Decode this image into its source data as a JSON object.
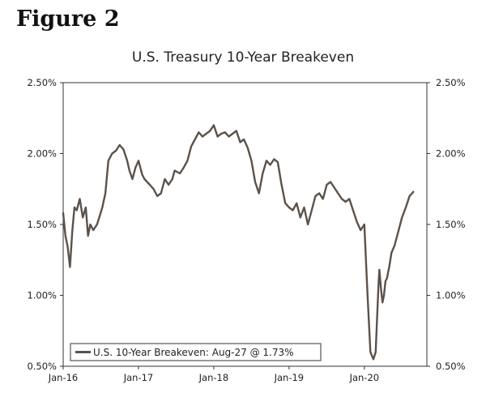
{
  "figure_label": "Figure 2",
  "chart_data": {
    "type": "line",
    "title": "U.S. Treasury 10-Year Breakeven",
    "xlabel": "",
    "ylabel": "",
    "grid": false,
    "legend_position": "bottom-left",
    "ylim": [
      0.5,
      2.5
    ],
    "xlim": [
      2016.0,
      2020.83
    ],
    "y_ticks": [
      2.5,
      2.0,
      1.5,
      1.0,
      0.5
    ],
    "y_tick_labels": [
      "2.50%",
      "2.00%",
      "1.50%",
      "1.00%",
      "0.50%"
    ],
    "x_ticks": [
      2016,
      2017,
      2018,
      2019,
      2020
    ],
    "x_tick_labels": [
      "Jan-16",
      "Jan-17",
      "Jan-18",
      "Jan-19",
      "Jan-20"
    ],
    "series": [
      {
        "name": "U.S. 10-Year Breakeven: Aug-27 @ 1.73%",
        "color": "#5c5249",
        "x": [
          2016.0,
          2016.03,
          2016.06,
          2016.09,
          2016.12,
          2016.15,
          2016.18,
          2016.22,
          2016.26,
          2016.3,
          2016.33,
          2016.36,
          2016.4,
          2016.45,
          2016.48,
          2016.52,
          2016.56,
          2016.6,
          2016.65,
          2016.7,
          2016.75,
          2016.8,
          2016.85,
          2016.88,
          2016.92,
          2016.96,
          2017.0,
          2017.05,
          2017.08,
          2017.15,
          2017.2,
          2017.25,
          2017.3,
          2017.35,
          2017.4,
          2017.45,
          2017.48,
          2017.55,
          2017.6,
          2017.65,
          2017.7,
          2017.75,
          2017.8,
          2017.85,
          2017.9,
          2017.95,
          2018.0,
          2018.05,
          2018.1,
          2018.15,
          2018.2,
          2018.25,
          2018.3,
          2018.35,
          2018.4,
          2018.45,
          2018.5,
          2018.55,
          2018.6,
          2018.65,
          2018.7,
          2018.75,
          2018.8,
          2018.85,
          2018.9,
          2018.95,
          2019.0,
          2019.05,
          2019.1,
          2019.15,
          2019.2,
          2019.25,
          2019.3,
          2019.35,
          2019.4,
          2019.45,
          2019.5,
          2019.55,
          2019.6,
          2019.65,
          2019.7,
          2019.75,
          2019.8,
          2019.85,
          2019.9,
          2019.95,
          2020.0,
          2020.04,
          2020.08,
          2020.12,
          2020.15,
          2020.17,
          2020.19,
          2020.2,
          2020.22,
          2020.24,
          2020.26,
          2020.28,
          2020.3,
          2020.33,
          2020.36,
          2020.4,
          2020.45,
          2020.5,
          2020.55,
          2020.6,
          2020.65
        ],
        "values": [
          1.58,
          1.42,
          1.34,
          1.2,
          1.45,
          1.62,
          1.6,
          1.68,
          1.55,
          1.62,
          1.42,
          1.5,
          1.46,
          1.5,
          1.55,
          1.62,
          1.72,
          1.95,
          2.0,
          2.02,
          2.06,
          2.03,
          1.95,
          1.88,
          1.82,
          1.9,
          1.95,
          1.85,
          1.82,
          1.78,
          1.75,
          1.7,
          1.72,
          1.82,
          1.78,
          1.82,
          1.88,
          1.86,
          1.9,
          1.95,
          2.05,
          2.1,
          2.15,
          2.12,
          2.14,
          2.16,
          2.2,
          2.12,
          2.14,
          2.15,
          2.12,
          2.14,
          2.16,
          2.08,
          2.1,
          2.04,
          1.95,
          1.8,
          1.72,
          1.86,
          1.95,
          1.92,
          1.96,
          1.94,
          1.78,
          1.65,
          1.62,
          1.6,
          1.65,
          1.55,
          1.62,
          1.5,
          1.6,
          1.7,
          1.72,
          1.68,
          1.78,
          1.8,
          1.76,
          1.72,
          1.68,
          1.66,
          1.68,
          1.6,
          1.52,
          1.46,
          1.5,
          1.02,
          0.6,
          0.55,
          0.6,
          0.85,
          1.1,
          1.18,
          1.05,
          0.95,
          1.0,
          1.1,
          1.12,
          1.2,
          1.3,
          1.35,
          1.45,
          1.55,
          1.62,
          1.7,
          1.73
        ]
      }
    ]
  }
}
